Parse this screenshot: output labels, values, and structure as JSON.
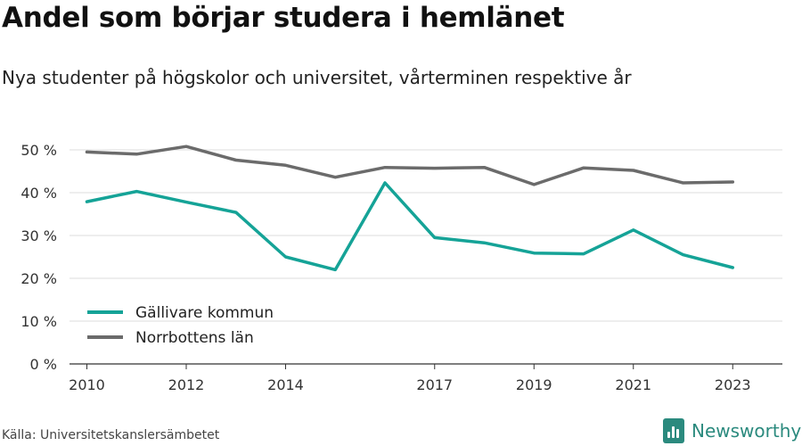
{
  "header": {
    "title": "Andel som börjar studera i hemlänet",
    "subtitle": "Nya studenter på högskolor och universitet, vårterminen respektive år"
  },
  "footer": {
    "source": "Källa: Universitetskanslersämbetet",
    "brand": "Newsworthy"
  },
  "chart_data": {
    "type": "line",
    "x": [
      2010,
      2011,
      2012,
      2013,
      2014,
      2015,
      2016,
      2017,
      2018,
      2019,
      2020,
      2021,
      2022,
      2023
    ],
    "x_tick_labels": [
      "2010",
      "2012",
      "2014",
      "2017",
      "2019",
      "2021",
      "2023"
    ],
    "y_ticks": [
      0,
      10,
      20,
      30,
      40,
      50
    ],
    "y_tick_labels": [
      "0 %",
      "10 %",
      "20 %",
      "30 %",
      "40 %",
      "50 %"
    ],
    "ylim": [
      0,
      50
    ],
    "grid": "horizontal",
    "legend_position": "bottom-left",
    "series": [
      {
        "name": "Gällivare kommun",
        "color": "#15a397",
        "values": [
          37.9,
          40.3,
          37.8,
          35.4,
          25.0,
          22.0,
          42.3,
          29.5,
          28.3,
          25.9,
          25.7,
          31.3,
          25.5,
          22.5
        ]
      },
      {
        "name": "Norrbottens län",
        "color": "#6b6b6b",
        "values": [
          49.5,
          49.0,
          50.8,
          47.6,
          46.4,
          43.6,
          45.9,
          45.7,
          45.9,
          41.9,
          45.8,
          45.2,
          42.3,
          42.5
        ]
      }
    ]
  }
}
